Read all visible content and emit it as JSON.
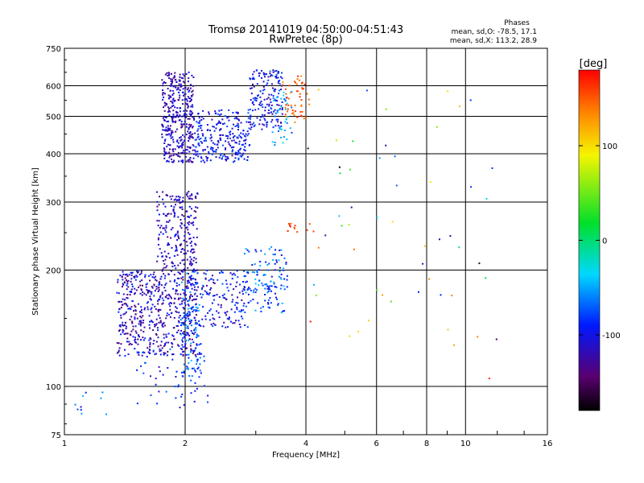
{
  "chart_data": {
    "type": "scatter",
    "title": "Tromsø 20141019 04:50:00-04:51:43",
    "subtitle": "RwPretec (8p)",
    "xlabel": "Frequency [MHz]",
    "ylabel": "Stationary phase Virtual Height [km]",
    "x_scale": "log",
    "y_scale": "log",
    "xlim": [
      1,
      16
    ],
    "ylim": [
      75,
      750
    ],
    "x_ticks": [
      1,
      2,
      4,
      6,
      8,
      10,
      16
    ],
    "y_ticks": [
      75,
      100,
      200,
      300,
      400,
      500,
      600,
      750
    ],
    "x_grid": [
      2,
      4,
      6,
      8,
      10
    ],
    "y_grid": [
      100,
      200,
      300,
      400,
      500,
      600
    ],
    "grid": true,
    "stats": {
      "heading": "Phases",
      "line1": "mean, sd,O: -78.5, 17.1",
      "line2": "mean, sd,X: 113.2, 28.9"
    },
    "colorbar": {
      "label": "[deg]",
      "ticks": [
        100,
        0,
        -100
      ],
      "range": [
        -180,
        180
      ],
      "colormap": "rainbow (black-purple-blue-cyan-green-yellow-red)"
    },
    "point_unit": "phase in deg",
    "clusters": [
      {
        "x": [
          1.75,
          2.1
        ],
        "y": [
          380,
          650
        ],
        "phase": [
          -140,
          -90
        ],
        "count": 380
      },
      {
        "x": [
          2.1,
          2.9
        ],
        "y": [
          380,
          520
        ],
        "phase": [
          -120,
          -70
        ],
        "count": 260
      },
      {
        "x": [
          2.9,
          3.5
        ],
        "y": [
          460,
          660
        ],
        "phase": [
          -130,
          -70
        ],
        "count": 170
      },
      {
        "x": [
          3.3,
          3.7
        ],
        "y": [
          420,
          600
        ],
        "phase": [
          -80,
          -20
        ],
        "count": 40
      },
      {
        "x": [
          3.5,
          4.1
        ],
        "y": [
          480,
          640
        ],
        "phase": [
          120,
          170
        ],
        "count": 55
      },
      {
        "x": [
          1.7,
          2.15
        ],
        "y": [
          200,
          320
        ],
        "phase": [
          -140,
          -90
        ],
        "count": 230
      },
      {
        "x": [
          1.35,
          2.15
        ],
        "y": [
          120,
          200
        ],
        "phase": [
          -150,
          -80
        ],
        "count": 560
      },
      {
        "x": [
          1.95,
          2.2
        ],
        "y": [
          105,
          200
        ],
        "phase": [
          -110,
          -40
        ],
        "count": 130
      },
      {
        "x": [
          2.2,
          2.9
        ],
        "y": [
          140,
          200
        ],
        "phase": [
          -130,
          -70
        ],
        "count": 140
      },
      {
        "x": [
          2.8,
          3.6
        ],
        "y": [
          155,
          230
        ],
        "phase": [
          -110,
          -40
        ],
        "count": 130
      },
      {
        "x": [
          1.5,
          2.3
        ],
        "y": [
          88,
          125
        ],
        "phase": [
          -120,
          -60
        ],
        "count": 60
      },
      {
        "x": [
          3.6,
          4.2
        ],
        "y": [
          250,
          265
        ],
        "phase": [
          150,
          175
        ],
        "count": 12
      },
      {
        "x": [
          1.05,
          1.3
        ],
        "y": [
          84,
          98
        ],
        "phase": [
          -100,
          -30
        ],
        "count": 10
      },
      {
        "x": [
          4.0,
          12
        ],
        "y": [
          90,
          620
        ],
        "phase": [
          -180,
          180
        ],
        "count": 55
      }
    ]
  }
}
